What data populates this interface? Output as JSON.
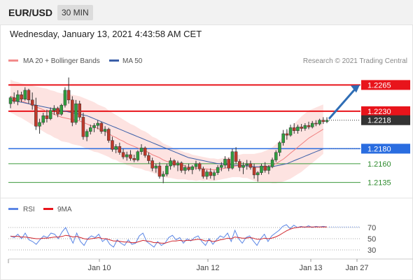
{
  "header": {
    "symbol": "EUR/USD",
    "timeframe": "30 MIN"
  },
  "datetime": "Wednesday, January 13, 2021 4:43:58 AM CET",
  "legend": {
    "ma20": "MA 20 + Bollinger Bands",
    "ma50": "MA 50",
    "credit": "Research © 2021 Trading Central"
  },
  "rsi_legend": {
    "rsi": "RSI",
    "ma": "9MA"
  },
  "levels": [
    {
      "value": "1.2265",
      "style": "badge",
      "color": "#e8141b"
    },
    {
      "value": "1.2230",
      "style": "badge",
      "color": "#e8141b"
    },
    {
      "value": "1.2218",
      "style": "badge",
      "color": "#333333"
    },
    {
      "value": "1.2180",
      "style": "badge",
      "color": "#2a6de0"
    },
    {
      "value": "1.2160",
      "style": "text",
      "color": "#2e8b2e"
    },
    {
      "value": "1.2135",
      "style": "text",
      "color": "#2e8b2e"
    }
  ],
  "chart_data": {
    "type": "candlestick",
    "price_range": [
      1.2115,
      1.2285
    ],
    "x_labels": [
      "Jan 10",
      "Jan 12",
      "Jan 13",
      "Jan 27"
    ],
    "candles": [
      [
        1.224,
        1.225,
        1.2234,
        1.2248
      ],
      [
        1.2248,
        1.2255,
        1.224,
        1.2243
      ],
      [
        1.2243,
        1.2258,
        1.2238,
        1.2252
      ],
      [
        1.2252,
        1.2256,
        1.2242,
        1.2246
      ],
      [
        1.2246,
        1.2262,
        1.2244,
        1.2258
      ],
      [
        1.2258,
        1.226,
        1.224,
        1.2245
      ],
      [
        1.2245,
        1.2255,
        1.2232,
        1.2238
      ],
      [
        1.2238,
        1.2248,
        1.2205,
        1.221
      ],
      [
        1.221,
        1.222,
        1.22,
        1.2215
      ],
      [
        1.2215,
        1.2228,
        1.2212,
        1.2224
      ],
      [
        1.2224,
        1.2232,
        1.2215,
        1.222
      ],
      [
        1.222,
        1.2235,
        1.2218,
        1.2231
      ],
      [
        1.2231,
        1.2238,
        1.2225,
        1.2234
      ],
      [
        1.2234,
        1.2236,
        1.2222,
        1.2226
      ],
      [
        1.2226,
        1.224,
        1.2224,
        1.2238
      ],
      [
        1.2238,
        1.2262,
        1.2235,
        1.2258
      ],
      [
        1.2258,
        1.2275,
        1.224,
        1.2245
      ],
      [
        1.2245,
        1.225,
        1.221,
        1.2215
      ],
      [
        1.2215,
        1.2245,
        1.2212,
        1.224
      ],
      [
        1.224,
        1.2244,
        1.2218,
        1.2222
      ],
      [
        1.2222,
        1.2228,
        1.2192,
        1.2196
      ],
      [
        1.2196,
        1.2206,
        1.219,
        1.2203
      ],
      [
        1.2203,
        1.2212,
        1.2199,
        1.2208
      ],
      [
        1.2208,
        1.2214,
        1.2202,
        1.2211
      ],
      [
        1.2211,
        1.2218,
        1.2206,
        1.2214
      ],
      [
        1.2214,
        1.2216,
        1.22,
        1.2203
      ],
      [
        1.2203,
        1.221,
        1.2197,
        1.2206
      ],
      [
        1.2206,
        1.2208,
        1.2188,
        1.2191
      ],
      [
        1.2191,
        1.2196,
        1.2176,
        1.2179
      ],
      [
        1.2179,
        1.2186,
        1.2174,
        1.2183
      ],
      [
        1.2183,
        1.2188,
        1.2172,
        1.2175
      ],
      [
        1.2175,
        1.218,
        1.2166,
        1.2169
      ],
      [
        1.2169,
        1.2176,
        1.2164,
        1.2172
      ],
      [
        1.2172,
        1.2178,
        1.2164,
        1.2167
      ],
      [
        1.2167,
        1.2172,
        1.2162,
        1.2165
      ],
      [
        1.2165,
        1.2178,
        1.2163,
        1.2176
      ],
      [
        1.2176,
        1.2186,
        1.2172,
        1.2181
      ],
      [
        1.2181,
        1.2183,
        1.2168,
        1.2171
      ],
      [
        1.2171,
        1.2175,
        1.216,
        1.2164
      ],
      [
        1.2164,
        1.2168,
        1.215,
        1.2154
      ],
      [
        1.2154,
        1.216,
        1.2148,
        1.2157
      ],
      [
        1.2157,
        1.2162,
        1.214,
        1.2143
      ],
      [
        1.2143,
        1.215,
        1.2134,
        1.2146
      ],
      [
        1.2146,
        1.216,
        1.2143,
        1.2157
      ],
      [
        1.2157,
        1.2168,
        1.2152,
        1.2164
      ],
      [
        1.2164,
        1.2166,
        1.2155,
        1.2158
      ],
      [
        1.2158,
        1.2164,
        1.215,
        1.2161
      ],
      [
        1.2161,
        1.2163,
        1.2148,
        1.2151
      ],
      [
        1.2151,
        1.2158,
        1.2146,
        1.2155
      ],
      [
        1.2155,
        1.216,
        1.215,
        1.2152
      ],
      [
        1.2152,
        1.2158,
        1.2146,
        1.2156
      ],
      [
        1.2156,
        1.2164,
        1.2152,
        1.216
      ],
      [
        1.216,
        1.2162,
        1.215,
        1.2153
      ],
      [
        1.2153,
        1.2156,
        1.214,
        1.2143
      ],
      [
        1.2143,
        1.2152,
        1.2139,
        1.2149
      ],
      [
        1.2149,
        1.2154,
        1.214,
        1.2144
      ],
      [
        1.2144,
        1.2151,
        1.2138,
        1.2148
      ],
      [
        1.2148,
        1.2158,
        1.2145,
        1.2155
      ],
      [
        1.2155,
        1.2162,
        1.215,
        1.2158
      ],
      [
        1.2158,
        1.217,
        1.2154,
        1.2166
      ],
      [
        1.2166,
        1.2168,
        1.215,
        1.2154
      ],
      [
        1.2154,
        1.218,
        1.2152,
        1.2176
      ],
      [
        1.2176,
        1.2182,
        1.216,
        1.2163
      ],
      [
        1.2163,
        1.2166,
        1.215,
        1.2155
      ],
      [
        1.2155,
        1.2162,
        1.2146,
        1.2158
      ],
      [
        1.2158,
        1.2165,
        1.2152,
        1.216
      ],
      [
        1.216,
        1.2164,
        1.2152,
        1.2155
      ],
      [
        1.2155,
        1.216,
        1.214,
        1.2145
      ],
      [
        1.2145,
        1.215,
        1.2136,
        1.2148
      ],
      [
        1.2148,
        1.216,
        1.2145,
        1.2157
      ],
      [
        1.2157,
        1.2162,
        1.2148,
        1.2151
      ],
      [
        1.2151,
        1.2158,
        1.2146,
        1.2156
      ],
      [
        1.2156,
        1.2168,
        1.2154,
        1.2165
      ],
      [
        1.2165,
        1.2178,
        1.2162,
        1.2175
      ],
      [
        1.2175,
        1.219,
        1.217,
        1.2188
      ],
      [
        1.2188,
        1.2205,
        1.2184,
        1.22
      ],
      [
        1.22,
        1.2206,
        1.2192,
        1.2198
      ],
      [
        1.2198,
        1.2212,
        1.2196,
        1.2208
      ],
      [
        1.2208,
        1.2214,
        1.22,
        1.2204
      ],
      [
        1.2204,
        1.2212,
        1.22,
        1.2209
      ],
      [
        1.2209,
        1.2213,
        1.2203,
        1.2207
      ],
      [
        1.2207,
        1.2214,
        1.2204,
        1.2211
      ],
      [
        1.2211,
        1.2216,
        1.2206,
        1.2209
      ],
      [
        1.2209,
        1.2217,
        1.2207,
        1.2214
      ],
      [
        1.2214,
        1.2218,
        1.221,
        1.2213
      ],
      [
        1.2213,
        1.222,
        1.2211,
        1.2218
      ],
      [
        1.2218,
        1.2222,
        1.2213,
        1.2216
      ],
      [
        1.2216,
        1.2222,
        1.2214,
        1.2218
      ]
    ],
    "ma20": [
      1.225,
      1.2248,
      1.2246,
      1.2244,
      1.2242,
      1.224,
      1.2238,
      1.2236,
      1.2234,
      1.2232,
      1.223,
      1.2228,
      1.2226,
      1.2224,
      1.2222,
      1.2221,
      1.222,
      1.2219,
      1.2218,
      1.2217,
      1.2215,
      1.2213,
      1.2211,
      1.2209,
      1.2207,
      1.2205,
      1.2203,
      1.22,
      1.2197,
      1.2195,
      1.2192,
      1.219,
      1.2187,
      1.2185,
      1.2183,
      1.2181,
      1.2179,
      1.2177,
      1.2175,
      1.2172,
      1.217,
      1.2168,
      1.2165,
      1.2163,
      1.2162,
      1.216,
      1.2159,
      1.2158,
      1.2157,
      1.2156,
      1.2155,
      1.2154,
      1.2154,
      1.2153,
      1.2153,
      1.2152,
      1.2152,
      1.2152,
      1.2153,
      1.2154,
      1.2155,
      1.2156,
      1.2157,
      1.2157,
      1.2157,
      1.2157,
      1.2156,
      1.2155,
      1.2155,
      1.2155,
      1.2156,
      1.2157,
      1.2158,
      1.216,
      1.2163,
      1.2166,
      1.217,
      1.2174,
      1.2178,
      1.2182,
      1.2186,
      1.219,
      1.2194,
      1.2197,
      1.22,
      1.2203,
      1.2206
    ],
    "ma50": [
      1.2245,
      1.2244,
      1.2243,
      1.2242,
      1.2241,
      1.224,
      1.2239,
      1.2238,
      1.2237,
      1.2236,
      1.2235,
      1.2234,
      1.2233,
      1.2232,
      1.2231,
      1.223,
      1.2229,
      1.2228,
      1.2227,
      1.2226,
      1.2225,
      1.2224,
      1.2222,
      1.222,
      1.2218,
      1.2216,
      1.2214,
      1.2212,
      1.221,
      1.2208,
      1.2206,
      1.2204,
      1.2202,
      1.22,
      1.2198,
      1.2196,
      1.2194,
      1.2192,
      1.219,
      1.2188,
      1.2186,
      1.2184,
      1.2182,
      1.218,
      1.2178,
      1.2176,
      1.2174,
      1.2172,
      1.217,
      1.2168,
      1.2167,
      1.2166,
      1.2165,
      1.2164,
      1.2163,
      1.2162,
      1.2161,
      1.216,
      1.216,
      1.2159,
      1.2159,
      1.2158,
      1.2158,
      1.2158,
      1.2157,
      1.2157,
      1.2157,
      1.2156,
      1.2156,
      1.2156,
      1.2156,
      1.2156,
      1.2156,
      1.2157,
      1.2158,
      1.2159,
      1.216,
      1.2162,
      1.2164,
      1.2166,
      1.2168,
      1.217,
      1.2172,
      1.2174,
      1.2176,
      1.2178,
      1.218
    ],
    "bb_width": [
      0.0022,
      0.0022,
      0.0023,
      0.0023,
      0.0024,
      0.0025,
      0.0026,
      0.0027,
      0.0028,
      0.0029,
      0.003,
      0.003,
      0.0031,
      0.0031,
      0.0032,
      0.0032,
      0.0032,
      0.0033,
      0.0033,
      0.0033,
      0.0033,
      0.0033,
      0.0033,
      0.0033,
      0.0032,
      0.0032,
      0.0032,
      0.0031,
      0.0031,
      0.003,
      0.003,
      0.0029,
      0.0029,
      0.0028,
      0.0028,
      0.0027,
      0.0026,
      0.0026,
      0.0025,
      0.0024,
      0.0024,
      0.0023,
      0.0022,
      0.0022,
      0.0021,
      0.002,
      0.002,
      0.0019,
      0.0018,
      0.0018,
      0.0017,
      0.0017,
      0.0016,
      0.0016,
      0.0015,
      0.0015,
      0.0015,
      0.0014,
      0.0014,
      0.0014,
      0.0014,
      0.0014,
      0.0015,
      0.0015,
      0.0016,
      0.0016,
      0.0017,
      0.0018,
      0.0019,
      0.002,
      0.0021,
      0.0022,
      0.0024,
      0.0026,
      0.0028,
      0.003,
      0.0032,
      0.0034,
      0.0035,
      0.0036,
      0.0037,
      0.0037,
      0.0037,
      0.0036,
      0.0035,
      0.0034,
      0.0033
    ],
    "forecast": {
      "from": 1.2218,
      "to": 1.2265
    },
    "rsi_ticks": [
      70,
      50,
      30
    ],
    "rsi_range": [
      20,
      85
    ],
    "rsi": [
      55,
      52,
      58,
      50,
      60,
      48,
      45,
      40,
      48,
      55,
      52,
      60,
      58,
      50,
      62,
      70,
      55,
      42,
      60,
      45,
      38,
      50,
      55,
      52,
      58,
      45,
      50,
      40,
      35,
      48,
      42,
      38,
      48,
      40,
      42,
      55,
      60,
      45,
      40,
      35,
      45,
      38,
      42,
      52,
      56,
      48,
      52,
      42,
      50,
      46,
      52,
      55,
      45,
      38,
      50,
      40,
      48,
      55,
      52,
      60,
      45,
      65,
      50,
      42,
      52,
      55,
      46,
      38,
      50,
      58,
      45,
      55,
      60,
      65,
      72,
      75,
      68,
      74,
      70,
      72,
      70,
      73,
      70,
      72,
      71,
      72,
      71
    ],
    "rsi_ma": [
      54,
      54,
      54,
      53,
      53,
      52,
      51,
      50,
      50,
      51,
      51,
      52,
      53,
      53,
      54,
      56,
      55,
      53,
      54,
      52,
      50,
      49,
      50,
      51,
      52,
      50,
      50,
      48,
      46,
      46,
      45,
      44,
      44,
      43,
      43,
      45,
      47,
      46,
      45,
      43,
      43,
      42,
      42,
      44,
      46,
      46,
      47,
      46,
      47,
      47,
      48,
      49,
      48,
      46,
      47,
      45,
      46,
      48,
      49,
      51,
      50,
      53,
      52,
      51,
      51,
      52,
      51,
      49,
      49,
      51,
      50,
      51,
      53,
      56,
      60,
      64,
      67,
      69,
      70,
      71,
      71,
      71,
      71,
      71,
      71,
      71,
      71
    ]
  }
}
